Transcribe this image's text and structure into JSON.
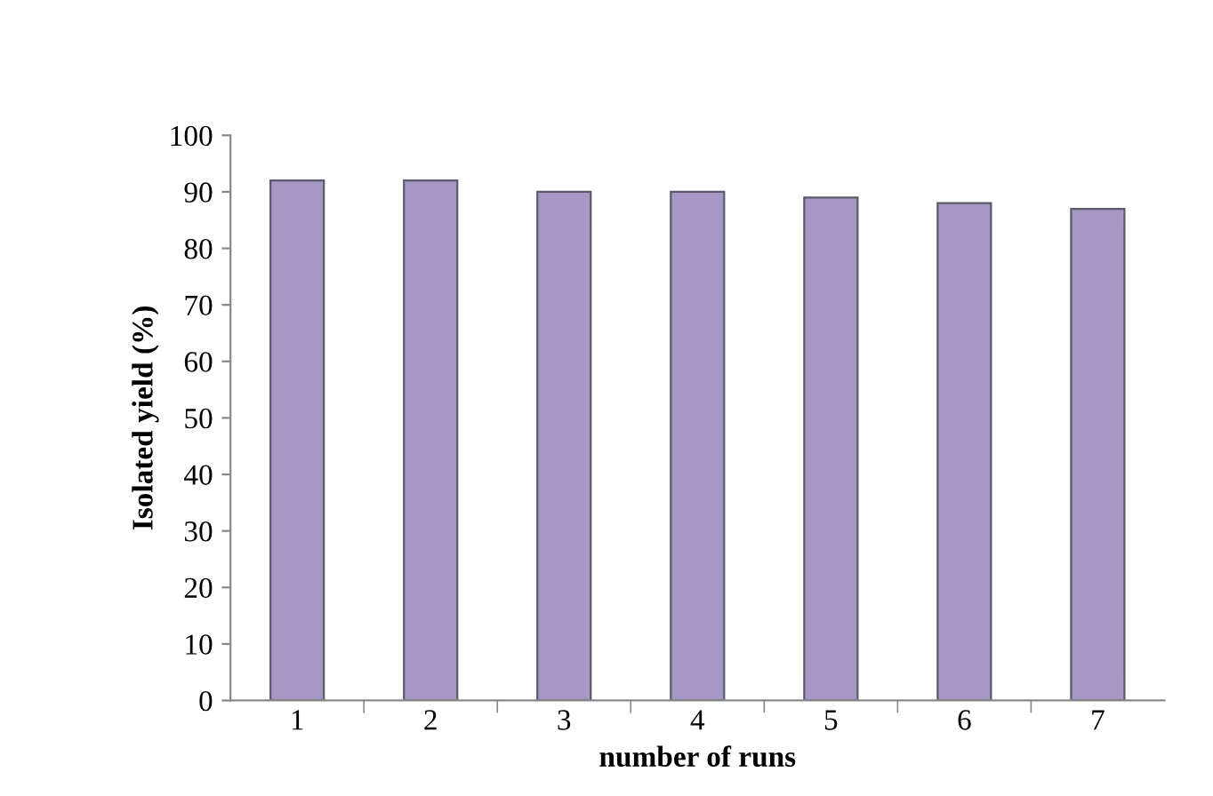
{
  "chart_data": {
    "type": "bar",
    "xlabel": "number of runs",
    "ylabel": "Isolated yield (%)",
    "categories": [
      "1",
      "2",
      "3",
      "4",
      "5",
      "6",
      "7"
    ],
    "values": [
      92,
      92,
      90,
      90,
      89,
      88,
      87
    ],
    "color": "#a797c4",
    "ylim": [
      0,
      100
    ],
    "yticks": [
      0,
      10,
      20,
      30,
      40,
      50,
      60,
      70,
      80,
      90,
      100
    ],
    "grid": false
  }
}
